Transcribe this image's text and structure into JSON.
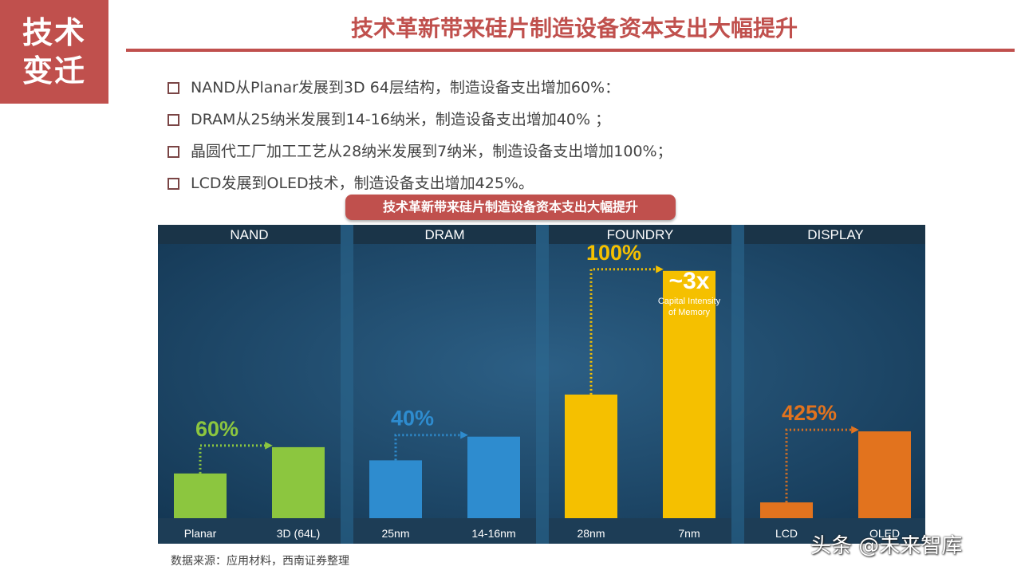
{
  "badge": {
    "line1": "技术",
    "line2": "变迁"
  },
  "header": {
    "title": "技术革新带来硅片制造设备资本支出大幅提升"
  },
  "bullets": [
    "NAND从Planar发展到3D 64层结构，制造设备支出增加60%：",
    "DRAM从25纳米发展到14-16纳米，制造设备支出增加40% ；",
    "晶圆代工厂加工工艺从28纳米发展到7纳米，制造设备支出增加100%；",
    "LCD发展到OLED技术，制造设备支出增加425%。"
  ],
  "chart_caption": "技术革新带来硅片制造设备资本支出大幅提升",
  "chart_data": {
    "type": "bar",
    "ylim": [
      0,
      100
    ],
    "panels": [
      {
        "name": "NAND",
        "color": "#8cc63f",
        "categories": [
          "Planar",
          "3D (64L)"
        ],
        "values": [
          17,
          27
        ],
        "label": "60%"
      },
      {
        "name": "DRAM",
        "color": "#2e8ccf",
        "categories": [
          "25nm",
          "14-16nm"
        ],
        "values": [
          22,
          31
        ],
        "label": "40%"
      },
      {
        "name": "FOUNDRY",
        "color": "#f5c000",
        "categories": [
          "28nm",
          "7nm"
        ],
        "values": [
          47,
          94
        ],
        "label": "100%",
        "annotation": {
          "big": "~3x",
          "line1": "Capital Intensity",
          "line2": "of Memory"
        }
      },
      {
        "name": "DISPLAY",
        "color": "#e2731e",
        "categories": [
          "LCD",
          "OLED"
        ],
        "values": [
          6,
          33
        ],
        "label": "425%"
      }
    ]
  },
  "source": "数据来源：应用材料，西南证券整理",
  "watermark": "头条 @未来智库"
}
